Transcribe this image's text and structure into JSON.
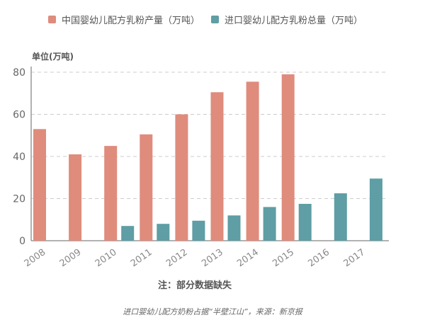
{
  "colors": {
    "series1": "#df8c7d",
    "series2": "#5e9ea4",
    "grid": "#cccccc",
    "axis": "#999999",
    "text": "#666666"
  },
  "chart_data": {
    "type": "bar",
    "categories": [
      "2008",
      "2009",
      "2010",
      "2011",
      "2012",
      "2013",
      "2014",
      "2015",
      "2016",
      "2017"
    ],
    "series": [
      {
        "name": "中国婴幼儿配方乳粉产量（万吨）",
        "values": [
          53,
          41,
          45,
          50.5,
          60,
          70.5,
          75.5,
          79,
          null,
          null
        ]
      },
      {
        "name": "进口婴幼儿配方乳粉总量（万吨）",
        "values": [
          null,
          null,
          7,
          8,
          9.5,
          12,
          16,
          17.5,
          22.5,
          29.5
        ]
      }
    ],
    "ylabel": "单位(万吨)",
    "ylim": [
      0,
      80
    ],
    "yticks": [
      0,
      20,
      40,
      60,
      80
    ],
    "note": "注：部分数据缺失",
    "grid": true,
    "legend": "top"
  },
  "caption": "进口婴幼儿配方奶粉占据“半壁江山”，来源：新京报"
}
